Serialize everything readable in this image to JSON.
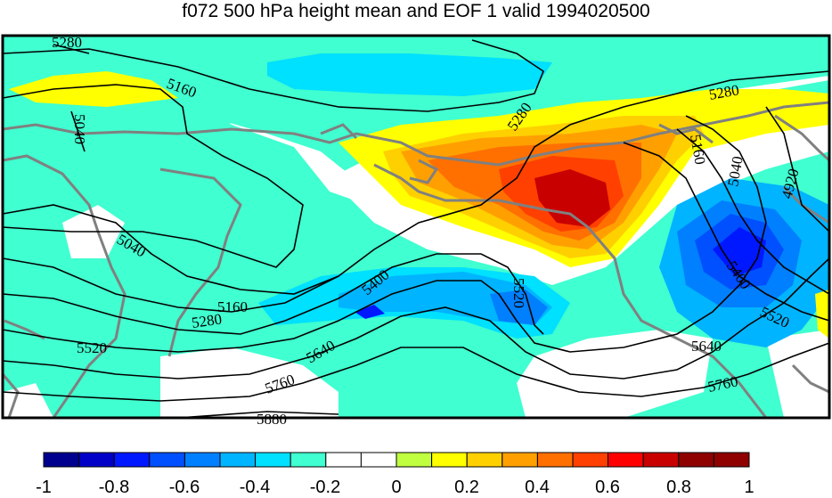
{
  "title": "f072 500 hPa height mean and EOF 1 valid 1994020500",
  "contour_labels": [
    "5280",
    "5160",
    "5040",
    "5280",
    "5280",
    "5160",
    "5040",
    "4920",
    "5040",
    "5160",
    "5280",
    "5400",
    "5520",
    "5400",
    "5520",
    "5640",
    "5760",
    "5640",
    "5760",
    "5520",
    "5880"
  ],
  "colorbar": {
    "ticks": [
      "-1",
      "-0.8",
      "-0.6",
      "-0.4",
      "-0.2",
      "0",
      "0.2",
      "0.4",
      "0.6",
      "0.8",
      "1"
    ],
    "colors": [
      "#00008f",
      "#0000c8",
      "#0018ff",
      "#0050ff",
      "#0080ff",
      "#00b4ff",
      "#00e0ff",
      "#40ffd0",
      "#ffffff",
      "#ffffff",
      "#c0ff40",
      "#ffff00",
      "#ffd000",
      "#ffa000",
      "#ff7000",
      "#ff4000",
      "#ff0000",
      "#c80000",
      "#8f0000",
      "#8f0000"
    ]
  },
  "colors": {
    "land": "#808080",
    "contour": "#000000",
    "frame": "#000000"
  }
}
